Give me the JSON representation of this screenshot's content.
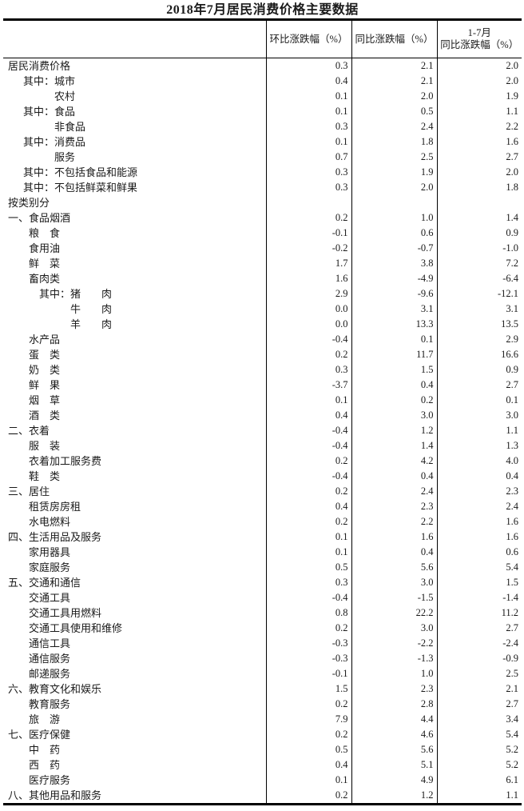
{
  "title": "2018年7月居民消费价格主要数据",
  "table": {
    "headers": {
      "mom": "环比涨跌幅（%）",
      "yoy": "同比涨跌幅（%）",
      "cum_line1": "1-7月",
      "cum_line2": "同比涨跌幅（%）"
    },
    "rows": [
      {
        "label": "居民消费价格",
        "indent": 0,
        "mom": "0.3",
        "yoy": "2.1",
        "cum": "2.0"
      },
      {
        "label": "其中：城市",
        "indent": 1,
        "mom": "0.4",
        "yoy": "2.1",
        "cum": "2.0"
      },
      {
        "label": "农村",
        "indent": 2,
        "mom": "0.1",
        "yoy": "2.0",
        "cum": "1.9"
      },
      {
        "label": "其中：食品",
        "indent": 1,
        "mom": "0.1",
        "yoy": "0.5",
        "cum": "1.1"
      },
      {
        "label": "非食品",
        "indent": 2,
        "mom": "0.3",
        "yoy": "2.4",
        "cum": "2.2"
      },
      {
        "label": "其中：消费品",
        "indent": 1,
        "mom": "0.1",
        "yoy": "1.8",
        "cum": "1.6"
      },
      {
        "label": "服务",
        "indent": 2,
        "mom": "0.7",
        "yoy": "2.5",
        "cum": "2.7"
      },
      {
        "label": "其中：不包括食品和能源",
        "indent": 1,
        "mom": "0.3",
        "yoy": "1.9",
        "cum": "2.0"
      },
      {
        "label": "其中：不包括鲜菜和鲜果",
        "indent": 1,
        "mom": "0.3",
        "yoy": "2.0",
        "cum": "1.8"
      },
      {
        "label": "按类别分",
        "indent": 0,
        "mom": "",
        "yoy": "",
        "cum": ""
      },
      {
        "label": "一、食品烟酒",
        "indent": 0,
        "mom": "0.2",
        "yoy": "1.0",
        "cum": "1.4"
      },
      {
        "label": "粮　食",
        "indent": 3,
        "mom": "-0.1",
        "yoy": "0.6",
        "cum": "0.9"
      },
      {
        "label": "食用油",
        "indent": 3,
        "mom": "-0.2",
        "yoy": "-0.7",
        "cum": "-1.0"
      },
      {
        "label": "鲜　菜",
        "indent": 3,
        "mom": "1.7",
        "yoy": "3.8",
        "cum": "7.2"
      },
      {
        "label": "畜肉类",
        "indent": 3,
        "mom": "1.6",
        "yoy": "-4.9",
        "cum": "-6.4"
      },
      {
        "label": "其中：猪　　肉",
        "indent": 4,
        "mom": "2.9",
        "yoy": "-9.6",
        "cum": "-12.1"
      },
      {
        "label": "牛　　肉",
        "indent": 5,
        "mom": "0.0",
        "yoy": "3.1",
        "cum": "3.1"
      },
      {
        "label": "羊　　肉",
        "indent": 5,
        "mom": "0.0",
        "yoy": "13.3",
        "cum": "13.5"
      },
      {
        "label": "水产品",
        "indent": 3,
        "mom": "-0.4",
        "yoy": "0.1",
        "cum": "2.9"
      },
      {
        "label": "蛋　类",
        "indent": 3,
        "mom": "0.2",
        "yoy": "11.7",
        "cum": "16.6"
      },
      {
        "label": "奶　类",
        "indent": 3,
        "mom": "0.3",
        "yoy": "1.5",
        "cum": "0.9"
      },
      {
        "label": "鲜　果",
        "indent": 3,
        "mom": "-3.7",
        "yoy": "0.4",
        "cum": "2.7"
      },
      {
        "label": "烟　草",
        "indent": 3,
        "mom": "0.1",
        "yoy": "0.2",
        "cum": "0.1"
      },
      {
        "label": "酒　类",
        "indent": 3,
        "mom": "0.4",
        "yoy": "3.0",
        "cum": "3.0"
      },
      {
        "label": "二、衣着",
        "indent": 0,
        "mom": "-0.4",
        "yoy": "1.2",
        "cum": "1.1"
      },
      {
        "label": "服　装",
        "indent": 3,
        "mom": "-0.4",
        "yoy": "1.4",
        "cum": "1.3"
      },
      {
        "label": "衣着加工服务费",
        "indent": 3,
        "mom": "0.2",
        "yoy": "4.2",
        "cum": "4.0"
      },
      {
        "label": "鞋　类",
        "indent": 3,
        "mom": "-0.4",
        "yoy": "0.4",
        "cum": "0.4"
      },
      {
        "label": "三、居住",
        "indent": 0,
        "mom": "0.2",
        "yoy": "2.4",
        "cum": "2.3"
      },
      {
        "label": "租赁房房租",
        "indent": 3,
        "mom": "0.4",
        "yoy": "2.3",
        "cum": "2.4"
      },
      {
        "label": "水电燃料",
        "indent": 3,
        "mom": "0.2",
        "yoy": "2.2",
        "cum": "1.6"
      },
      {
        "label": "四、生活用品及服务",
        "indent": 0,
        "mom": "0.1",
        "yoy": "1.6",
        "cum": "1.6"
      },
      {
        "label": "家用器具",
        "indent": 3,
        "mom": "0.1",
        "yoy": "0.4",
        "cum": "0.6"
      },
      {
        "label": "家庭服务",
        "indent": 3,
        "mom": "0.5",
        "yoy": "5.6",
        "cum": "5.4"
      },
      {
        "label": "五、交通和通信",
        "indent": 0,
        "mom": "0.3",
        "yoy": "3.0",
        "cum": "1.5"
      },
      {
        "label": "交通工具",
        "indent": 3,
        "mom": "-0.4",
        "yoy": "-1.5",
        "cum": "-1.4"
      },
      {
        "label": "交通工具用燃料",
        "indent": 3,
        "mom": "0.8",
        "yoy": "22.2",
        "cum": "11.2"
      },
      {
        "label": "交通工具使用和维修",
        "indent": 3,
        "mom": "0.2",
        "yoy": "3.0",
        "cum": "2.7"
      },
      {
        "label": "通信工具",
        "indent": 3,
        "mom": "-0.3",
        "yoy": "-2.2",
        "cum": "-2.4"
      },
      {
        "label": "通信服务",
        "indent": 3,
        "mom": "-0.3",
        "yoy": "-1.3",
        "cum": "-0.9"
      },
      {
        "label": "邮递服务",
        "indent": 3,
        "mom": "-0.1",
        "yoy": "1.0",
        "cum": "2.5"
      },
      {
        "label": "六、教育文化和娱乐",
        "indent": 0,
        "mom": "1.5",
        "yoy": "2.3",
        "cum": "2.1"
      },
      {
        "label": "教育服务",
        "indent": 3,
        "mom": "0.2",
        "yoy": "2.8",
        "cum": "2.7"
      },
      {
        "label": "旅　游",
        "indent": 3,
        "mom": "7.9",
        "yoy": "4.4",
        "cum": "3.4"
      },
      {
        "label": "七、医疗保健",
        "indent": 0,
        "mom": "0.2",
        "yoy": "4.6",
        "cum": "5.4"
      },
      {
        "label": "中　药",
        "indent": 3,
        "mom": "0.5",
        "yoy": "5.6",
        "cum": "5.2"
      },
      {
        "label": "西　药",
        "indent": 3,
        "mom": "0.4",
        "yoy": "5.1",
        "cum": "5.2"
      },
      {
        "label": "医疗服务",
        "indent": 3,
        "mom": "0.1",
        "yoy": "4.9",
        "cum": "6.1"
      },
      {
        "label": "八、其他用品和服务",
        "indent": 0,
        "mom": "0.2",
        "yoy": "1.2",
        "cum": "1.1"
      }
    ]
  }
}
